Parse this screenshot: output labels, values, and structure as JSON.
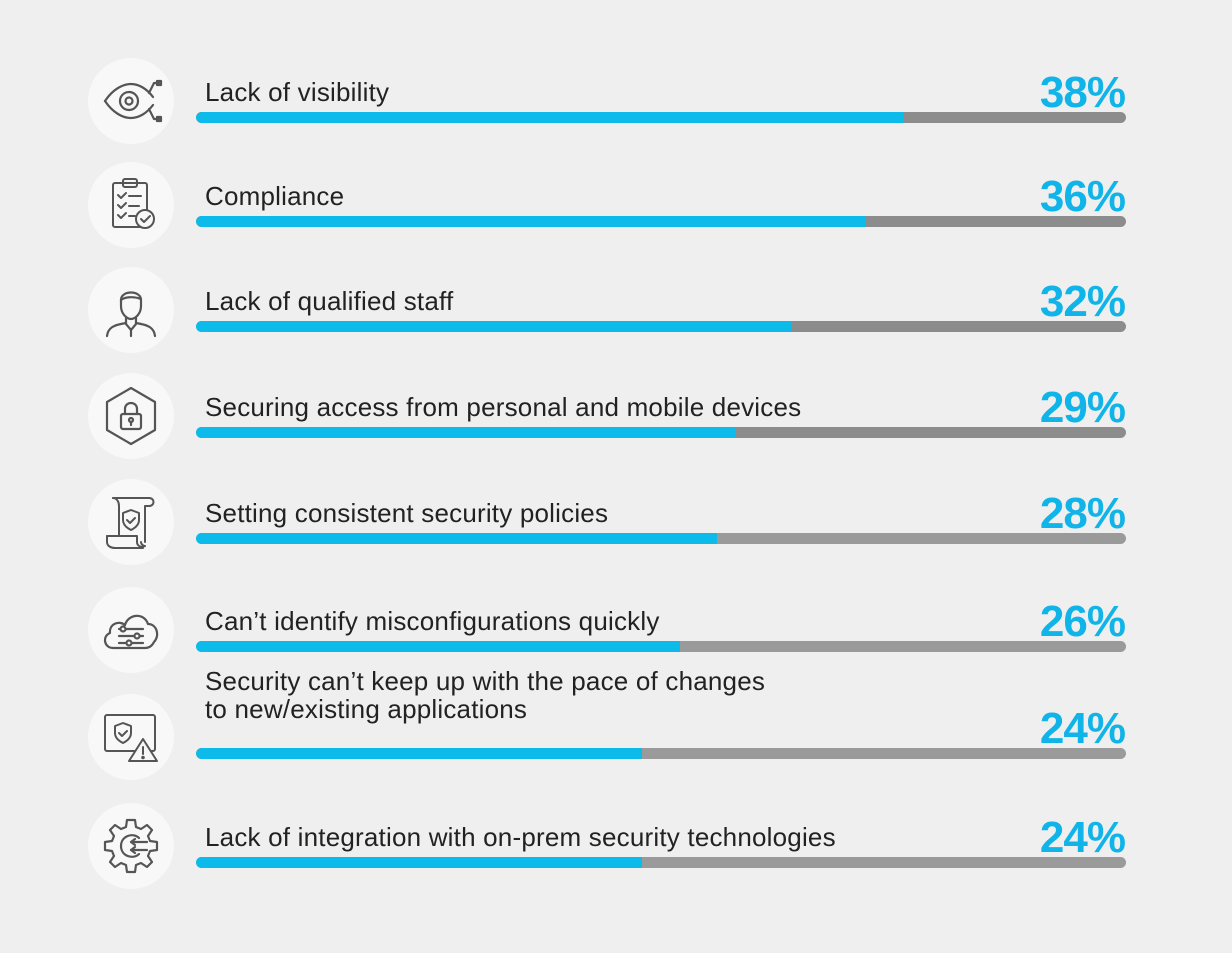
{
  "chart_data": {
    "type": "bar",
    "orientation": "horizontal",
    "categories": [
      "Lack of visibility",
      "Compliance",
      "Lack of qualified staff",
      "Securing access from personal and mobile devices",
      "Setting consistent security policies",
      "Can’t identify misconfigurations quickly",
      "Security can’t keep up with the pace of changes to new/existing applications",
      "Lack of integration with on-prem security technologies"
    ],
    "values": [
      38,
      36,
      32,
      29,
      28,
      26,
      24,
      24
    ],
    "value_labels": [
      "38%",
      "36%",
      "32%",
      "29%",
      "28%",
      "26%",
      "24%",
      "24%"
    ],
    "xlim": [
      0,
      50
    ],
    "grid": false,
    "legend": "none"
  },
  "rows": [
    {
      "label_lines": [
        "Lack of visibility"
      ],
      "icon": "eye-network-icon"
    },
    {
      "label_lines": [
        "Compliance"
      ],
      "icon": "clipboard-check-icon"
    },
    {
      "label_lines": [
        "Lack of qualified staff"
      ],
      "icon": "person-staff-icon"
    },
    {
      "label_lines": [
        "Securing access from personal and mobile devices"
      ],
      "icon": "hexagon-lock-icon"
    },
    {
      "label_lines": [
        "Setting consistent security policies"
      ],
      "icon": "scroll-shield-icon"
    },
    {
      "label_lines": [
        "Can’t identify misconfigurations quickly"
      ],
      "icon": "cloud-sliders-icon"
    },
    {
      "label_lines": [
        "Security can’t keep up with the pace of changes",
        "to new/existing applications"
      ],
      "icon": "monitor-shield-warning-icon"
    },
    {
      "label_lines": [
        "Lack of integration with on-prem security technologies"
      ],
      "icon": "gear-integration-icon"
    }
  ],
  "colors": {
    "accent": "#0cbbe9",
    "value_text": "#10b4e8",
    "track": "#8c8c8c",
    "background": "#efefef",
    "icon_stroke": "#555555"
  }
}
